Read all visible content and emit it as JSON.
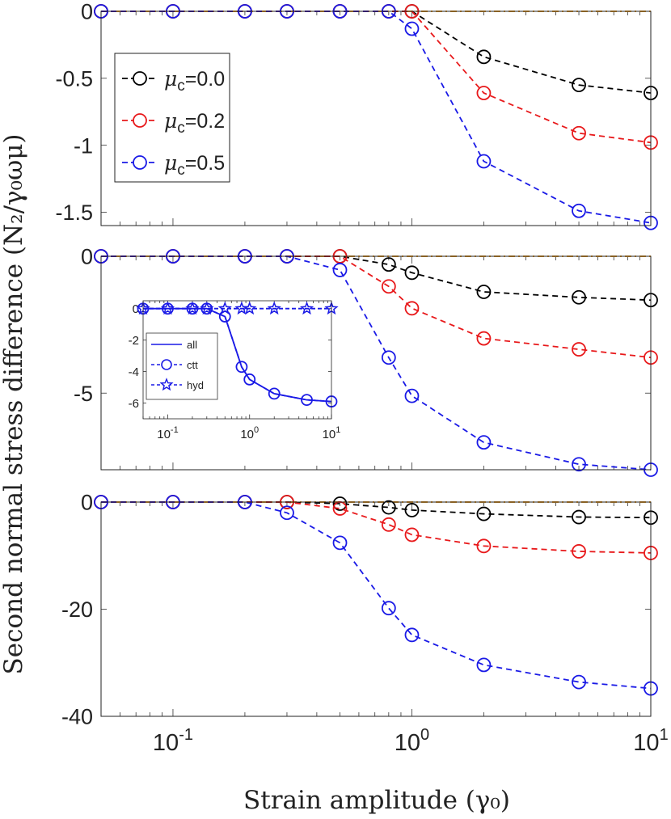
{
  "figure": {
    "ylabel": "Second normal stress difference (N₂/γ₀ωμ)",
    "xlabel": "Strain amplitude (γ₀)"
  },
  "legend": {
    "entries": [
      {
        "prefix": "μ",
        "sub": "c",
        "value": "=0.0",
        "color": "#000000"
      },
      {
        "prefix": "μ",
        "sub": "c",
        "value": "=0.2",
        "color": "#e8191b"
      },
      {
        "prefix": "μ",
        "sub": "c",
        "value": "=0.5",
        "color": "#1a1ae6"
      }
    ]
  },
  "inset_legend": {
    "entries": [
      {
        "label": "all",
        "style": "solid"
      },
      {
        "label": "ctt",
        "style": "dashed-circle"
      },
      {
        "label": "hyd",
        "style": "dashed-star"
      }
    ]
  },
  "chart_data": [
    {
      "type": "line",
      "panel": "top",
      "xscale": "log",
      "xlim": [
        0.05,
        10
      ],
      "ylim": [
        -1.6,
        0
      ],
      "yticks": [
        0,
        -0.5,
        -1,
        -1.5
      ],
      "ytick_labels": [
        "0",
        "-0.5",
        "-1",
        "-1.5"
      ],
      "x": [
        0.05,
        0.1,
        0.2,
        0.3,
        0.5,
        0.8,
        1,
        2,
        5,
        10
      ],
      "series": [
        {
          "name": "μc=0.0",
          "color": "#000000",
          "values": [
            0,
            0,
            0,
            0,
            0,
            0,
            0,
            -0.34,
            -0.55,
            -0.61
          ]
        },
        {
          "name": "μc=0.2",
          "color": "#e8191b",
          "values": [
            0,
            0,
            0,
            0,
            0,
            0,
            0,
            -0.61,
            -0.91,
            -0.98
          ]
        },
        {
          "name": "μc=0.5",
          "color": "#1a1ae6",
          "values": [
            0,
            0,
            0,
            0,
            0,
            0,
            -0.13,
            -1.12,
            -1.49,
            -1.58
          ]
        }
      ],
      "baseline_color": "#f0a028"
    },
    {
      "type": "line",
      "panel": "middle",
      "xscale": "log",
      "xlim": [
        0.05,
        10
      ],
      "ylim": [
        -7.8,
        0
      ],
      "yticks": [
        0,
        -5
      ],
      "ytick_labels": [
        "0",
        "-5"
      ],
      "x": [
        0.05,
        0.1,
        0.2,
        0.3,
        0.5,
        0.8,
        1,
        2,
        5,
        10
      ],
      "series": [
        {
          "name": "μc=0.0",
          "color": "#000000",
          "values": [
            0,
            0,
            0,
            0,
            0,
            -0.3,
            -0.6,
            -1.3,
            -1.5,
            -1.6
          ]
        },
        {
          "name": "μc=0.2",
          "color": "#e8191b",
          "values": [
            0,
            0,
            0,
            0,
            0,
            -1.1,
            -1.9,
            -3.0,
            -3.4,
            -3.7
          ]
        },
        {
          "name": "μc=0.5",
          "color": "#1a1ae6",
          "values": [
            0,
            0,
            0,
            0,
            -0.5,
            -3.7,
            -5.1,
            -6.8,
            -7.6,
            -7.8
          ]
        }
      ],
      "baseline_color": "#f0a028"
    },
    {
      "type": "line",
      "panel": "middle-inset",
      "xscale": "log",
      "xlim": [
        0.05,
        10
      ],
      "ylim": [
        -7,
        0.5
      ],
      "yticks": [
        0,
        -2,
        -4,
        -6
      ],
      "ytick_labels": [
        "0",
        "-2",
        "-4",
        "-6"
      ],
      "xticks": [
        0.1,
        1,
        10
      ],
      "color": "#1a1ae6",
      "x": [
        0.05,
        0.1,
        0.2,
        0.3,
        0.5,
        0.8,
        1,
        2,
        5,
        10
      ],
      "series": [
        {
          "name": "all",
          "style": "solid",
          "values": [
            0,
            0,
            0,
            0,
            -0.5,
            -3.7,
            -4.5,
            -5.4,
            -5.8,
            -5.9
          ]
        },
        {
          "name": "ctt",
          "style": "dashed-circle",
          "values": [
            0,
            0,
            0,
            0,
            -0.5,
            -3.7,
            -4.5,
            -5.4,
            -5.8,
            -5.9
          ]
        },
        {
          "name": "hyd",
          "style": "dashed-star",
          "values": [
            0,
            0,
            0,
            0,
            0,
            0,
            0,
            0,
            0,
            0
          ]
        }
      ]
    },
    {
      "type": "line",
      "panel": "bottom",
      "xscale": "log",
      "xlim": [
        0.05,
        10
      ],
      "ylim": [
        -40,
        0
      ],
      "yticks": [
        0,
        -20,
        -40
      ],
      "ytick_labels": [
        "0",
        "-20",
        "-40"
      ],
      "xticks": [
        0.1,
        1,
        10
      ],
      "x": [
        0.05,
        0.1,
        0.2,
        0.3,
        0.5,
        0.8,
        1,
        2,
        5,
        10
      ],
      "series": [
        {
          "name": "μc=0.0",
          "color": "#000000",
          "values": [
            0,
            0,
            0,
            0,
            -0.3,
            -1.0,
            -1.5,
            -2.2,
            -2.8,
            -2.9
          ]
        },
        {
          "name": "μc=0.2",
          "color": "#e8191b",
          "values": [
            0,
            0,
            0,
            0,
            -1.2,
            -4.2,
            -6.1,
            -8.2,
            -9.2,
            -9.5
          ]
        },
        {
          "name": "μc=0.5",
          "color": "#1a1ae6",
          "values": [
            0,
            0,
            0,
            -2.0,
            -7.6,
            -19.8,
            -24.8,
            -30.4,
            -33.6,
            -34.8
          ]
        }
      ],
      "baseline_color": "#f0a028"
    }
  ]
}
